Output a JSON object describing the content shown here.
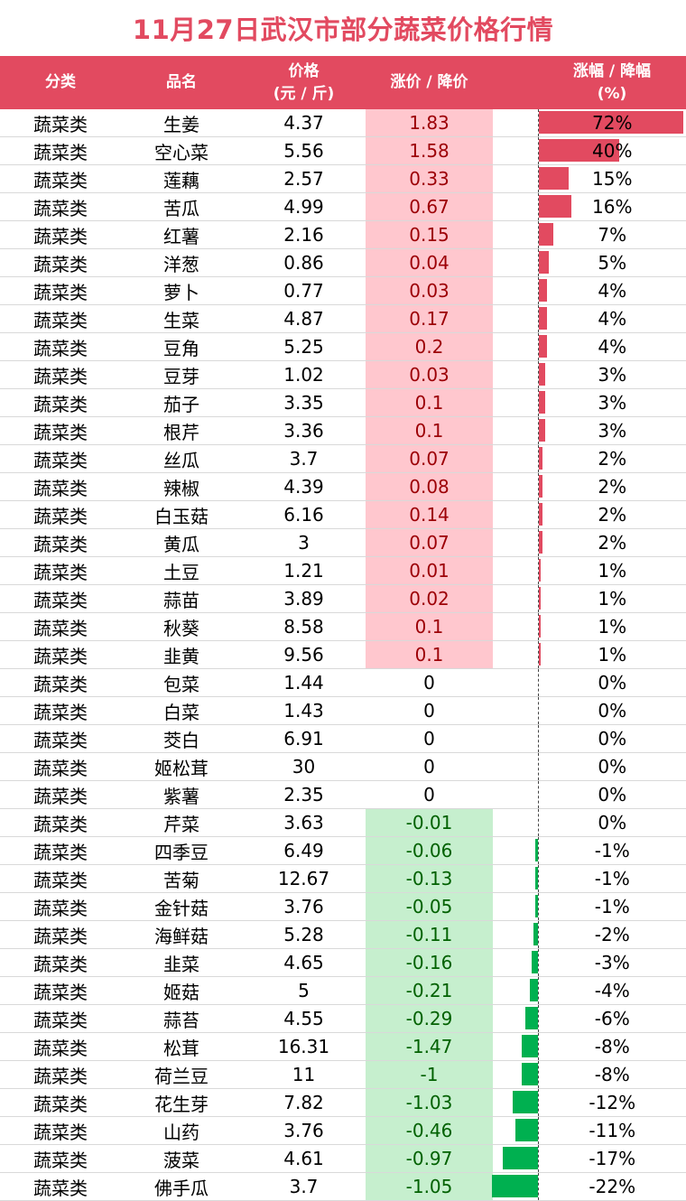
{
  "title": "11月27日武汉市部分蔬菜价格行情",
  "headers": {
    "category": "分类",
    "name": "品名",
    "price_line1": "价格",
    "price_line2": "(元 / 斤)",
    "change": "涨价 / 降价",
    "pct_line1": "涨幅 / 降幅",
    "pct_line2": "(%)"
  },
  "colors": {
    "accent": "#e24a60",
    "up_fill": "#ffc7ce",
    "up_text": "#9c0006",
    "down_fill": "#c6efce",
    "down_text": "#006100",
    "neg_bar": "#00b050"
  },
  "rows": [
    {
      "category": "蔬菜类",
      "name": "生姜",
      "price": "4.37",
      "change": "1.83",
      "pct": "72%",
      "pct_value": 72
    },
    {
      "category": "蔬菜类",
      "name": "空心菜",
      "price": "5.56",
      "change": "1.58",
      "pct": "40%",
      "pct_value": 40
    },
    {
      "category": "蔬菜类",
      "name": "莲藕",
      "price": "2.57",
      "change": "0.33",
      "pct": "15%",
      "pct_value": 15
    },
    {
      "category": "蔬菜类",
      "name": "苦瓜",
      "price": "4.99",
      "change": "0.67",
      "pct": "16%",
      "pct_value": 16
    },
    {
      "category": "蔬菜类",
      "name": "红薯",
      "price": "2.16",
      "change": "0.15",
      "pct": "7%",
      "pct_value": 7
    },
    {
      "category": "蔬菜类",
      "name": "洋葱",
      "price": "0.86",
      "change": "0.04",
      "pct": "5%",
      "pct_value": 5
    },
    {
      "category": "蔬菜类",
      "name": "萝卜",
      "price": "0.77",
      "change": "0.03",
      "pct": "4%",
      "pct_value": 4
    },
    {
      "category": "蔬菜类",
      "name": "生菜",
      "price": "4.87",
      "change": "0.17",
      "pct": "4%",
      "pct_value": 4
    },
    {
      "category": "蔬菜类",
      "name": "豆角",
      "price": "5.25",
      "change": "0.2",
      "pct": "4%",
      "pct_value": 4
    },
    {
      "category": "蔬菜类",
      "name": "豆芽",
      "price": "1.02",
      "change": "0.03",
      "pct": "3%",
      "pct_value": 3
    },
    {
      "category": "蔬菜类",
      "name": "茄子",
      "price": "3.35",
      "change": "0.1",
      "pct": "3%",
      "pct_value": 3
    },
    {
      "category": "蔬菜类",
      "name": "根芹",
      "price": "3.36",
      "change": "0.1",
      "pct": "3%",
      "pct_value": 3
    },
    {
      "category": "蔬菜类",
      "name": "丝瓜",
      "price": "3.7",
      "change": "0.07",
      "pct": "2%",
      "pct_value": 2
    },
    {
      "category": "蔬菜类",
      "name": "辣椒",
      "price": "4.39",
      "change": "0.08",
      "pct": "2%",
      "pct_value": 2
    },
    {
      "category": "蔬菜类",
      "name": "白玉菇",
      "price": "6.16",
      "change": "0.14",
      "pct": "2%",
      "pct_value": 2
    },
    {
      "category": "蔬菜类",
      "name": "黄瓜",
      "price": "3",
      "change": "0.07",
      "pct": "2%",
      "pct_value": 2
    },
    {
      "category": "蔬菜类",
      "name": "土豆",
      "price": "1.21",
      "change": "0.01",
      "pct": "1%",
      "pct_value": 1
    },
    {
      "category": "蔬菜类",
      "name": "蒜苗",
      "price": "3.89",
      "change": "0.02",
      "pct": "1%",
      "pct_value": 1
    },
    {
      "category": "蔬菜类",
      "name": "秋葵",
      "price": "8.58",
      "change": "0.1",
      "pct": "1%",
      "pct_value": 1
    },
    {
      "category": "蔬菜类",
      "name": "韭黄",
      "price": "9.56",
      "change": "0.1",
      "pct": "1%",
      "pct_value": 1
    },
    {
      "category": "蔬菜类",
      "name": "包菜",
      "price": "1.44",
      "change": "0",
      "pct": "0%",
      "pct_value": 0
    },
    {
      "category": "蔬菜类",
      "name": "白菜",
      "price": "1.43",
      "change": "0",
      "pct": "0%",
      "pct_value": 0
    },
    {
      "category": "蔬菜类",
      "name": "茭白",
      "price": "6.91",
      "change": "0",
      "pct": "0%",
      "pct_value": 0
    },
    {
      "category": "蔬菜类",
      "name": "姬松茸",
      "price": "30",
      "change": "0",
      "pct": "0%",
      "pct_value": 0
    },
    {
      "category": "蔬菜类",
      "name": "紫薯",
      "price": "2.35",
      "change": "0",
      "pct": "0%",
      "pct_value": 0
    },
    {
      "category": "蔬菜类",
      "name": "芹菜",
      "price": "3.63",
      "change": "-0.01",
      "pct": "0%",
      "pct_value": 0
    },
    {
      "category": "蔬菜类",
      "name": "四季豆",
      "price": "6.49",
      "change": "-0.06",
      "pct": "-1%",
      "pct_value": -1
    },
    {
      "category": "蔬菜类",
      "name": "苦菊",
      "price": "12.67",
      "change": "-0.13",
      "pct": "-1%",
      "pct_value": -1
    },
    {
      "category": "蔬菜类",
      "name": "金针菇",
      "price": "3.76",
      "change": "-0.05",
      "pct": "-1%",
      "pct_value": -1
    },
    {
      "category": "蔬菜类",
      "name": "海鲜菇",
      "price": "5.28",
      "change": "-0.11",
      "pct": "-2%",
      "pct_value": -2
    },
    {
      "category": "蔬菜类",
      "name": "韭菜",
      "price": "4.65",
      "change": "-0.16",
      "pct": "-3%",
      "pct_value": -3
    },
    {
      "category": "蔬菜类",
      "name": "姬菇",
      "price": "5",
      "change": "-0.21",
      "pct": "-4%",
      "pct_value": -4
    },
    {
      "category": "蔬菜类",
      "name": "蒜苔",
      "price": "4.55",
      "change": "-0.29",
      "pct": "-6%",
      "pct_value": -6
    },
    {
      "category": "蔬菜类",
      "name": "松茸",
      "price": "16.31",
      "change": "-1.47",
      "pct": "-8%",
      "pct_value": -8
    },
    {
      "category": "蔬菜类",
      "name": "荷兰豆",
      "price": "11",
      "change": "-1",
      "pct": "-8%",
      "pct_value": -8
    },
    {
      "category": "蔬菜类",
      "name": "花生芽",
      "price": "7.82",
      "change": "-1.03",
      "pct": "-12%",
      "pct_value": -12
    },
    {
      "category": "蔬菜类",
      "name": "山药",
      "price": "3.76",
      "change": "-0.46",
      "pct": "-11%",
      "pct_value": -11
    },
    {
      "category": "蔬菜类",
      "name": "菠菜",
      "price": "4.61",
      "change": "-0.97",
      "pct": "-17%",
      "pct_value": -17
    },
    {
      "category": "蔬菜类",
      "name": "佛手瓜",
      "price": "3.7",
      "change": "-1.05",
      "pct": "-22%",
      "pct_value": -22
    }
  ]
}
